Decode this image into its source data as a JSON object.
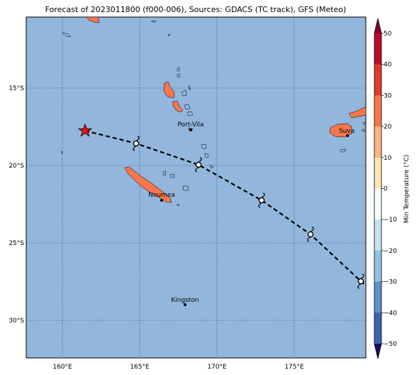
{
  "title": "Forecast of 2023011800 (f000-006), Sources: GDACS (TC track), GFS (Meteo)",
  "colors": {
    "ocean": "#93b6dc",
    "land": "#f4774e",
    "grid": "#2b3a63",
    "track": "#000000"
  },
  "lat_ticks": [
    "15°S",
    "20°S",
    "25°S",
    "30°S"
  ],
  "lon_ticks": [
    "160°E",
    "165°E",
    "170°E",
    "175°E"
  ],
  "cities": [
    {
      "name": "Port-Vila"
    },
    {
      "name": "Suva"
    },
    {
      "name": "Noumea"
    },
    {
      "name": "Kingston"
    }
  ],
  "colorbar": {
    "label": "Min Temperature (°C)",
    "ticks": [
      "50",
      "40",
      "30",
      "20",
      "10",
      "0",
      "−10",
      "−20",
      "−30",
      "−40",
      "−50"
    ],
    "colors": [
      "#800026",
      "#b80f26",
      "#df3b2b",
      "#f4784e",
      "#fdb47e",
      "#fee7b4",
      "#f6fbff",
      "#c4e2f0",
      "#93c1df",
      "#5a94c6",
      "#3e63ac",
      "#2c2e88",
      "#1a0b63"
    ]
  },
  "track": {
    "start_icon": "star-icon",
    "storm_icon": "cyclone-icon",
    "points": 5
  }
}
